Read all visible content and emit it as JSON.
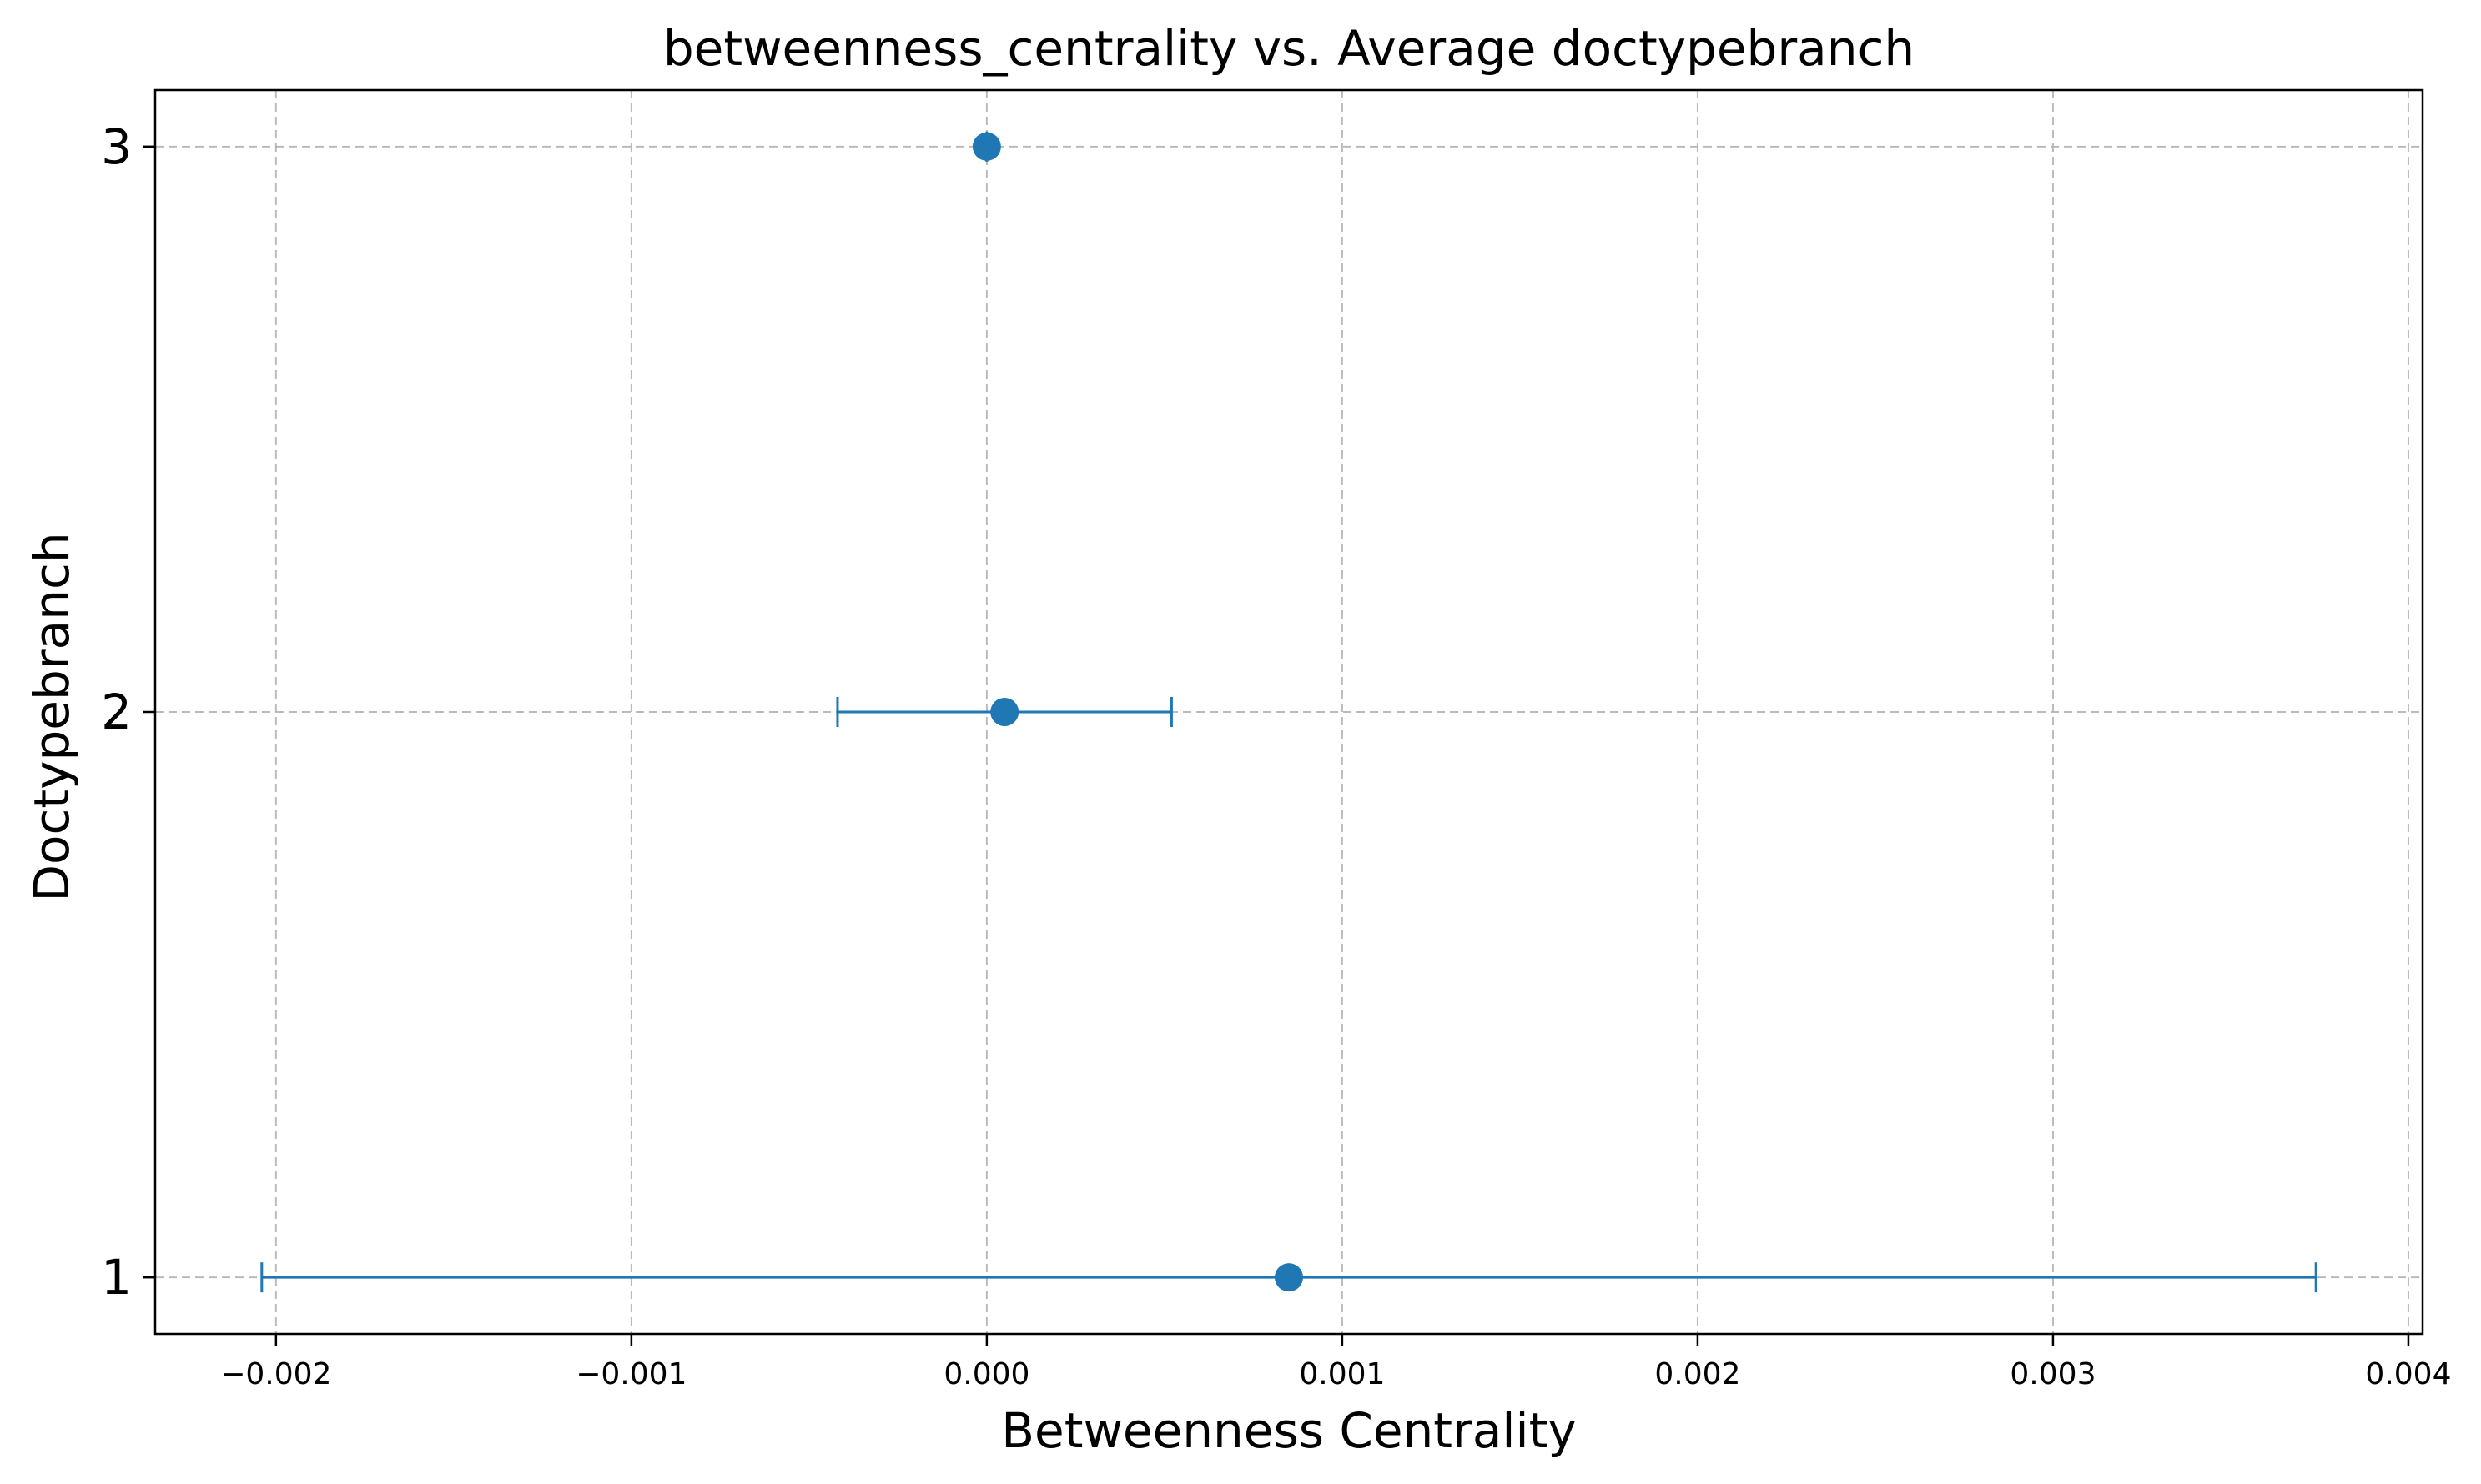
{
  "chart_data": {
    "type": "scatter",
    "title": "betweenness_centrality vs. Average doctypebranch",
    "xlabel": "Betweenness Centrality",
    "ylabel": "Doctypebranch",
    "xlim": [
      -0.00234,
      0.00404
    ],
    "ylim": [
      0.9,
      3.1
    ],
    "xticks": [
      -0.002,
      -0.001,
      0.0,
      0.001,
      0.002,
      0.003,
      0.004
    ],
    "xtick_labels": [
      "−0.002",
      "−0.001",
      "0.000",
      "0.001",
      "0.002",
      "0.003",
      "0.004"
    ],
    "yticks": [
      1,
      2,
      3
    ],
    "ytick_labels": [
      "1",
      "2",
      "3"
    ],
    "grid": true,
    "color": "#1f77b4",
    "points": [
      {
        "x": 0.00085,
        "y": 1,
        "xerr": 0.00289
      },
      {
        "x": 5e-05,
        "y": 2,
        "xerr": 0.00047
      },
      {
        "x": 0.0,
        "y": 3,
        "xerr": 0.0
      }
    ]
  }
}
